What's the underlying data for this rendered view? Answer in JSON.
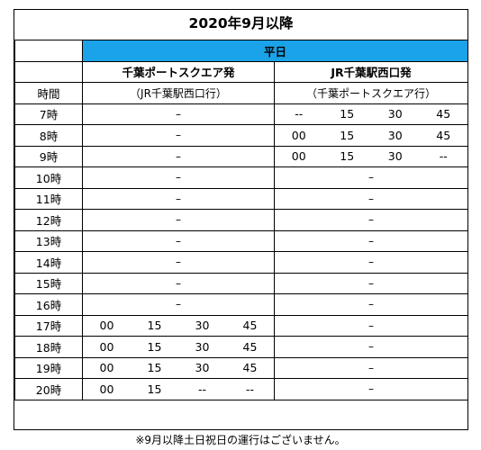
{
  "title": "2020年9月以降",
  "weekday_label": "平日",
  "direction1": {
    "from": "千葉ポートスクエア発",
    "to": "（JR千葉駅西口行）"
  },
  "direction2": {
    "from": "JR千葉駅西口発",
    "to": "（千葉ポートスクエア行）"
  },
  "hour_header": "時間",
  "rows": [
    {
      "hour": "7時",
      "d1": "–",
      "d2": [
        "--",
        "15",
        "30",
        "45"
      ]
    },
    {
      "hour": "8時",
      "d1": "–",
      "d2": [
        "00",
        "15",
        "30",
        "45"
      ]
    },
    {
      "hour": "9時",
      "d1": "–",
      "d2": [
        "00",
        "15",
        "30",
        "--"
      ]
    },
    {
      "hour": "10時",
      "d1": "–",
      "d2": "–"
    },
    {
      "hour": "11時",
      "d1": "–",
      "d2": "–"
    },
    {
      "hour": "12時",
      "d1": "–",
      "d2": "–"
    },
    {
      "hour": "13時",
      "d1": "–",
      "d2": "–"
    },
    {
      "hour": "14時",
      "d1": "–",
      "d2": "–"
    },
    {
      "hour": "15時",
      "d1": "–",
      "d2": "–"
    },
    {
      "hour": "16時",
      "d1": "–",
      "d2": "–"
    },
    {
      "hour": "17時",
      "d1": [
        "00",
        "15",
        "30",
        "45"
      ],
      "d2": "–"
    },
    {
      "hour": "18時",
      "d1": [
        "00",
        "15",
        "30",
        "45"
      ],
      "d2": "–"
    },
    {
      "hour": "19時",
      "d1": [
        "00",
        "15",
        "30",
        "45"
      ],
      "d2": "–"
    },
    {
      "hour": "20時",
      "d1": [
        "00",
        "15",
        "--",
        "--"
      ],
      "d2": "–"
    }
  ],
  "footnote": "※9月以降土日祝日の運行はございません。",
  "colors": {
    "weekday_bar": "#1aa3e8"
  }
}
